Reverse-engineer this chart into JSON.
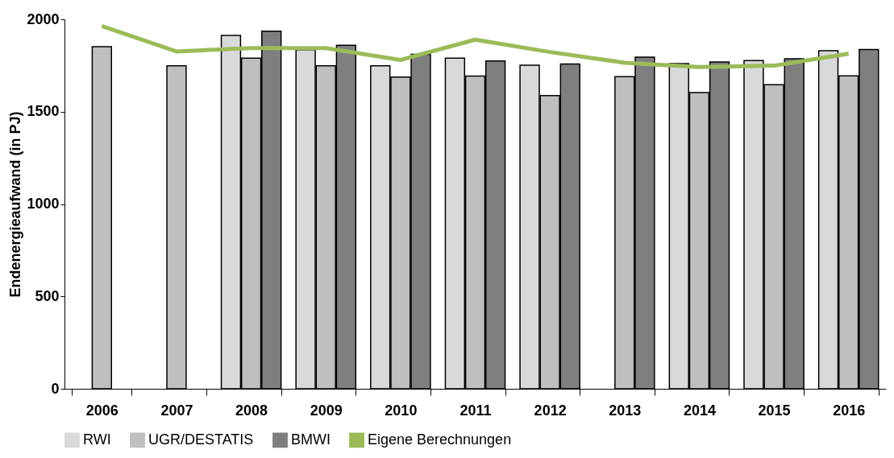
{
  "chart_data": {
    "type": "bar",
    "ylabel": "Endenergieaufwand (in PJ)",
    "categories": [
      "2006",
      "2007",
      "2008",
      "2009",
      "2010",
      "2011",
      "2012",
      "2013",
      "2014",
      "2015",
      "2016"
    ],
    "series": [
      {
        "name": "RWI",
        "color": "#d9d9d9",
        "values": [
          null,
          null,
          1913,
          1835,
          1748,
          1790,
          1752,
          null,
          1760,
          1777,
          1830
        ]
      },
      {
        "name": "UGR/DESTATIS",
        "color": "#bfbfbf",
        "values": [
          1852,
          1748,
          1790,
          1748,
          1687,
          1693,
          1587,
          1690,
          1603,
          1646,
          1694
        ]
      },
      {
        "name": "BMWI",
        "color": "#7f7f7f",
        "values": [
          null,
          null,
          1936,
          1859,
          1810,
          1775,
          1758,
          1795,
          1769,
          1786,
          1837
        ]
      },
      {
        "name": "Eigene Berechnungen",
        "type": "line",
        "color": "#9bbb59",
        "values": [
          1963,
          1826,
          1844,
          1844,
          1780,
          1890,
          1823,
          1765,
          1742,
          1749,
          1814
        ]
      }
    ],
    "ylim": [
      0,
      2000
    ],
    "yticks": [
      0,
      500,
      1000,
      1500,
      2000
    ],
    "grid": false,
    "legend": "bottom"
  }
}
